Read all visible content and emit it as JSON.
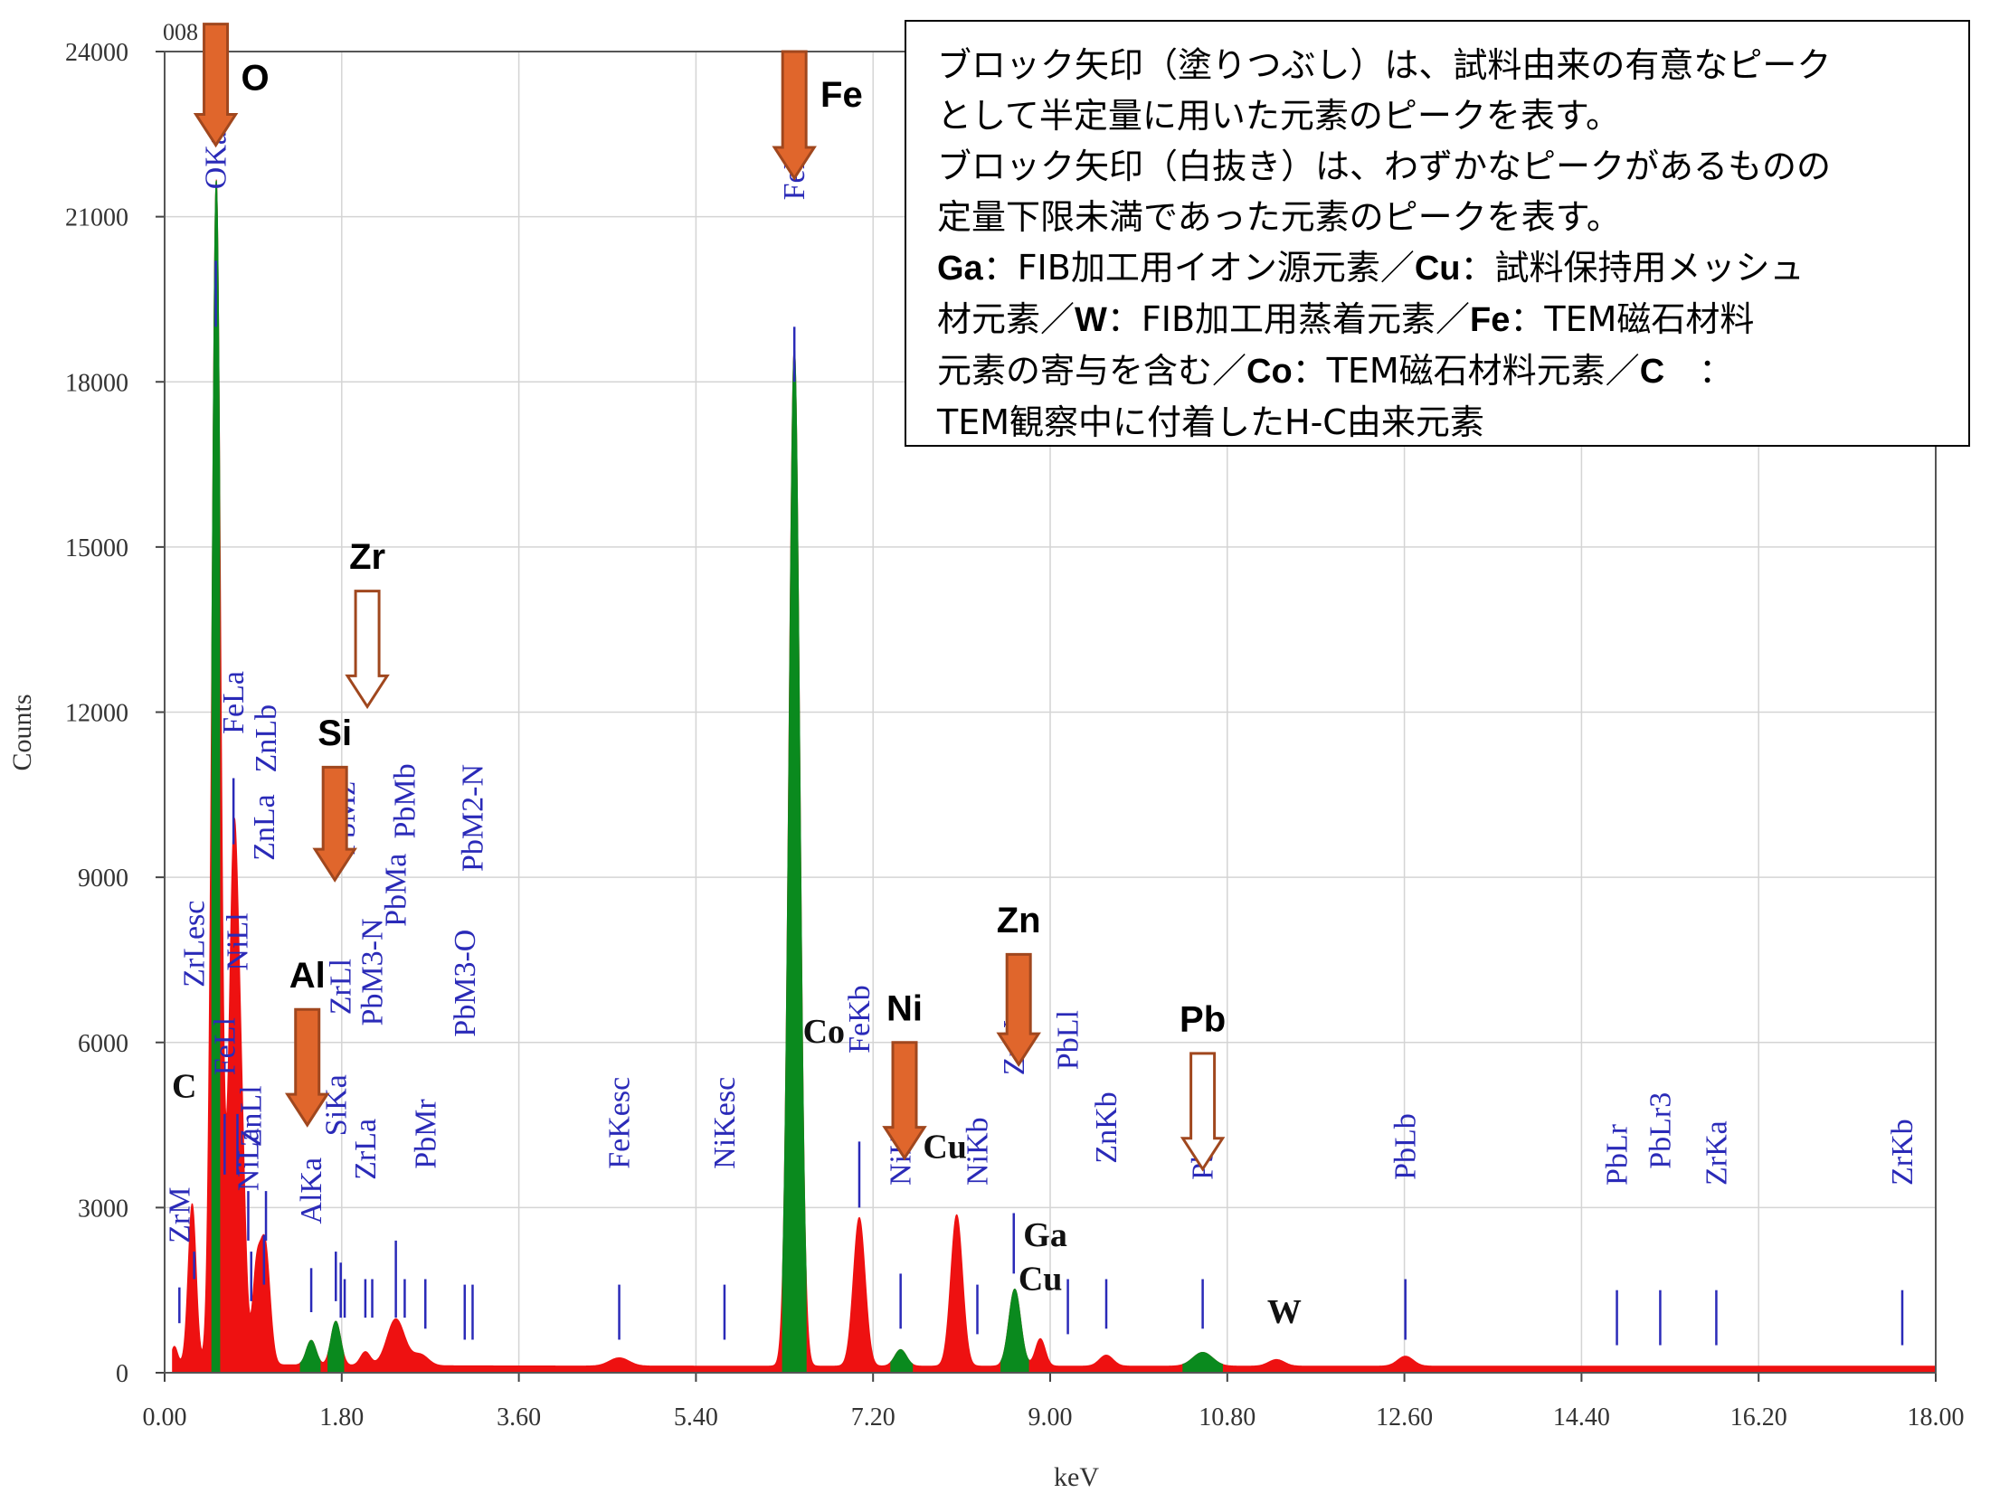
{
  "chart_data": {
    "type": "area",
    "title": "",
    "xlabel": "keV",
    "ylabel": "Counts",
    "xlim": [
      0,
      18
    ],
    "ylim": [
      0,
      24000
    ],
    "x_ticks": [
      "0.00",
      "1.80",
      "3.60",
      "5.40",
      "7.20",
      "9.00",
      "10.80",
      "12.60",
      "14.40",
      "16.20",
      "18.00"
    ],
    "y_ticks": [
      "0",
      "3000",
      "6000",
      "9000",
      "12000",
      "15000",
      "18000",
      "21000",
      "24000"
    ],
    "corner_label": "008",
    "grid": true,
    "legend": "none",
    "colors": {
      "highlight": "#0a8a1e",
      "spectrum": "#ee1111",
      "line_label": "#2a2ab8",
      "arrow": "#e0662c",
      "arrow_outline": "#a0471e"
    },
    "spectrum_peaks": [
      {
        "x": 0.1,
        "y": 300,
        "w": 0.03
      },
      {
        "x": 0.28,
        "y": 2900,
        "w": 0.04
      },
      {
        "x": 0.525,
        "y": 21500,
        "w": 0.045
      },
      {
        "x": 0.705,
        "y": 9600,
        "w": 0.05
      },
      {
        "x": 0.79,
        "y": 2700,
        "w": 0.04
      },
      {
        "x": 0.93,
        "y": 1500,
        "w": 0.04
      },
      {
        "x": 1.02,
        "y": 2200,
        "w": 0.05
      },
      {
        "x": 1.49,
        "y": 450,
        "w": 0.05
      },
      {
        "x": 1.74,
        "y": 800,
        "w": 0.05
      },
      {
        "x": 2.04,
        "y": 250,
        "w": 0.05
      },
      {
        "x": 2.35,
        "y": 850,
        "w": 0.09
      },
      {
        "x": 2.6,
        "y": 200,
        "w": 0.08
      },
      {
        "x": 4.62,
        "y": 150,
        "w": 0.1
      },
      {
        "x": 6.4,
        "y": 18500,
        "w": 0.055
      },
      {
        "x": 7.06,
        "y": 2700,
        "w": 0.06
      },
      {
        "x": 7.48,
        "y": 300,
        "w": 0.06
      },
      {
        "x": 8.05,
        "y": 2750,
        "w": 0.06
      },
      {
        "x": 8.64,
        "y": 1400,
        "w": 0.06
      },
      {
        "x": 8.9,
        "y": 500,
        "w": 0.05
      },
      {
        "x": 9.57,
        "y": 200,
        "w": 0.07
      },
      {
        "x": 10.55,
        "y": 250,
        "w": 0.1
      },
      {
        "x": 11.3,
        "y": 120,
        "w": 0.08
      },
      {
        "x": 12.61,
        "y": 180,
        "w": 0.08
      }
    ],
    "highlight_regions": [
      {
        "from": 0.48,
        "to": 0.56
      },
      {
        "from": 1.38,
        "to": 1.58
      },
      {
        "from": 1.66,
        "to": 1.82
      },
      {
        "from": 6.28,
        "to": 6.52
      },
      {
        "from": 7.38,
        "to": 7.6
      },
      {
        "from": 8.5,
        "to": 8.78
      },
      {
        "from": 10.35,
        "to": 10.75
      }
    ],
    "line_labels": [
      {
        "text": "ZrM",
        "x": 0.15,
        "marker_top": 1550,
        "marker_bottom": 900,
        "label_y": 2350
      },
      {
        "text": "ZrLesc",
        "x": 0.3,
        "marker_top": 2200,
        "marker_bottom": 1700,
        "label_y": 7000
      },
      {
        "text": "OKa",
        "x": 0.52,
        "marker_top": 20200,
        "marker_bottom": 19000,
        "label_y": 21500
      },
      {
        "text": "FeLl",
        "x": 0.61,
        "marker_top": 4700,
        "marker_bottom": 3600,
        "label_y": 5400
      },
      {
        "text": "FeLa",
        "x": 0.7,
        "marker_top": 10800,
        "marker_bottom": 9600,
        "label_y": 11600
      },
      {
        "text": "NiLl",
        "x": 0.74,
        "marker_top": 4700,
        "marker_bottom": 3600,
        "label_y": 7300
      },
      {
        "text": "NiLa",
        "x": 0.85,
        "marker_top": 3300,
        "marker_bottom": 2400,
        "label_y": 3300
      },
      {
        "text": "ZnLb",
        "x": 1.03,
        "marker_top": 3300,
        "marker_bottom": 2400,
        "label_y": 10900
      },
      {
        "text": "ZnLl",
        "x": 0.88,
        "marker_top": 2200,
        "marker_bottom": 1300,
        "label_y": 4100
      },
      {
        "text": "ZnLa",
        "x": 1.01,
        "marker_top": 2500,
        "marker_bottom": 1600,
        "label_y": 9300
      },
      {
        "text": "AlKa",
        "x": 1.49,
        "marker_top": 1900,
        "marker_bottom": 1100,
        "label_y": 2700
      },
      {
        "text": "SiKa",
        "x": 1.74,
        "marker_top": 2200,
        "marker_bottom": 1300,
        "label_y": 4300
      },
      {
        "text": "ZrLl",
        "x": 1.79,
        "marker_top": 2000,
        "marker_bottom": 1000,
        "label_y": 6500
      },
      {
        "text": "PbMz",
        "x": 1.83,
        "marker_top": 1700,
        "marker_bottom": 1000,
        "label_y": 9400
      },
      {
        "text": "ZrLa",
        "x": 2.04,
        "marker_top": 1700,
        "marker_bottom": 1000,
        "label_y": 3500
      },
      {
        "text": "PbM3-N",
        "x": 2.11,
        "marker_top": 1700,
        "marker_bottom": 1000,
        "label_y": 6300
      },
      {
        "text": "PbMa",
        "x": 2.35,
        "marker_top": 2400,
        "marker_bottom": 1000,
        "label_y": 8100
      },
      {
        "text": "PbMb",
        "x": 2.44,
        "marker_top": 1700,
        "marker_bottom": 1000,
        "label_y": 9700
      },
      {
        "text": "PbMr",
        "x": 2.65,
        "marker_top": 1700,
        "marker_bottom": 800,
        "label_y": 3700
      },
      {
        "text": "PbM3-O",
        "x": 3.05,
        "marker_top": 1600,
        "marker_bottom": 600,
        "label_y": 6100
      },
      {
        "text": "PbM2-N",
        "x": 3.13,
        "marker_top": 1600,
        "marker_bottom": 600,
        "label_y": 9100
      },
      {
        "text": "FeKesc",
        "x": 4.62,
        "marker_top": 1600,
        "marker_bottom": 600,
        "label_y": 3700
      },
      {
        "text": "NiKesc",
        "x": 5.69,
        "marker_top": 1600,
        "marker_bottom": 600,
        "label_y": 3700
      },
      {
        "text": "FeKa",
        "x": 6.4,
        "marker_top": 19000,
        "marker_bottom": 18000,
        "label_y": 21300
      },
      {
        "text": "FeKb",
        "x": 7.06,
        "marker_top": 4200,
        "marker_bottom": 3000,
        "label_y": 5800
      },
      {
        "text": "NiKa",
        "x": 7.48,
        "marker_top": 1800,
        "marker_bottom": 800,
        "label_y": 3400
      },
      {
        "text": "NiKb",
        "x": 8.26,
        "marker_top": 1600,
        "marker_bottom": 700,
        "label_y": 3400
      },
      {
        "text": "ZnKa",
        "x": 8.63,
        "marker_top": 2900,
        "marker_bottom": 1800,
        "label_y": 5400
      },
      {
        "text": "PbLl",
        "x": 9.18,
        "marker_top": 1700,
        "marker_bottom": 700,
        "label_y": 5500
      },
      {
        "text": "ZnKb",
        "x": 9.57,
        "marker_top": 1700,
        "marker_bottom": 800,
        "label_y": 3800
      },
      {
        "text": "PbLa",
        "x": 10.55,
        "marker_top": 1700,
        "marker_bottom": 800,
        "label_y": 3500
      },
      {
        "text": "PbLb",
        "x": 12.61,
        "marker_top": 1700,
        "marker_bottom": 600,
        "label_y": 3500
      },
      {
        "text": "PbLr",
        "x": 14.76,
        "marker_top": 1500,
        "marker_bottom": 500,
        "label_y": 3400
      },
      {
        "text": "PbLr3",
        "x": 15.2,
        "marker_top": 1500,
        "marker_bottom": 500,
        "label_y": 3700
      },
      {
        "text": "ZrKa",
        "x": 15.77,
        "marker_top": 1500,
        "marker_bottom": 500,
        "label_y": 3400
      },
      {
        "text": "ZrKb",
        "x": 17.66,
        "marker_top": 1500,
        "marker_bottom": 500,
        "label_y": 3400
      }
    ],
    "element_arrows": [
      {
        "label": "O",
        "style": "filled",
        "x": 0.52,
        "y_top": 24500,
        "y_tip": 22300,
        "label_x": 0.92,
        "label_y": 23300
      },
      {
        "label": "Fe",
        "style": "filled",
        "x": 6.4,
        "y_top": 24000,
        "y_tip": 21700,
        "label_x": 6.88,
        "label_y": 23000
      },
      {
        "label": "Zr",
        "style": "outline",
        "x": 2.06,
        "y_top": 14200,
        "y_tip": 12100,
        "label_x": 2.06,
        "label_y": 14600
      },
      {
        "label": "Si",
        "style": "filled",
        "x": 1.73,
        "y_top": 11000,
        "y_tip": 8950,
        "label_x": 1.73,
        "label_y": 11400
      },
      {
        "label": "Al",
        "style": "filled",
        "x": 1.45,
        "y_top": 6600,
        "y_tip": 4500,
        "label_x": 1.45,
        "label_y": 7000
      },
      {
        "label": "Zn",
        "style": "filled",
        "x": 8.68,
        "y_top": 7600,
        "y_tip": 5600,
        "label_x": 8.68,
        "label_y": 8000
      },
      {
        "label": "Ni",
        "style": "filled",
        "x": 7.52,
        "y_top": 6000,
        "y_tip": 3900,
        "label_x": 7.52,
        "label_y": 6400
      },
      {
        "label": "Pb",
        "style": "outline",
        "x": 10.55,
        "y_top": 5800,
        "y_tip": 3700,
        "label_x": 10.55,
        "label_y": 6200
      }
    ],
    "annotations": [
      {
        "text": "C",
        "x": 0.2,
        "y": 5000
      },
      {
        "text": "Co",
        "x": 6.7,
        "y": 6000
      },
      {
        "text": "Cu",
        "x": 7.93,
        "y": 3900
      },
      {
        "text": "Ga",
        "x": 8.95,
        "y": 2300
      },
      {
        "text": "Cu",
        "x": 8.9,
        "y": 1500
      },
      {
        "text": "W",
        "x": 11.38,
        "y": 900
      }
    ]
  },
  "note": {
    "lines": [
      {
        "bold": "",
        "rest": "ブロック矢印（塗りつぶし）は、試料由来の有意なピーク"
      },
      {
        "bold": "",
        "rest": "として半定量に用いた元素のピークを表す。"
      },
      {
        "bold": "",
        "rest": "ブロック矢印（白抜き）は、わずかなピークがあるものの"
      },
      {
        "bold": "",
        "rest": "定量下限未満であった元素のピークを表す。"
      },
      {
        "bold": "Ga",
        "rest": "：FIB加工用イオン源元素／",
        "bold2": "Cu",
        "rest2": "：試料保持用メッシュ"
      },
      {
        "bold": "",
        "rest": "材元素／",
        "bold2": "W",
        "rest2": "：FIB加工用蒸着元素／",
        "bold3": "Fe",
        "rest3": "：TEM磁石材料"
      },
      {
        "bold": "",
        "rest": "元素の寄与を含む／",
        "bold2": "Co",
        "rest2": "：TEM磁石材料元素／",
        "bold3": "C",
        "rest3": "　："
      },
      {
        "bold": "",
        "rest": "TEM観察中に付着したH-C由来元素"
      }
    ]
  }
}
